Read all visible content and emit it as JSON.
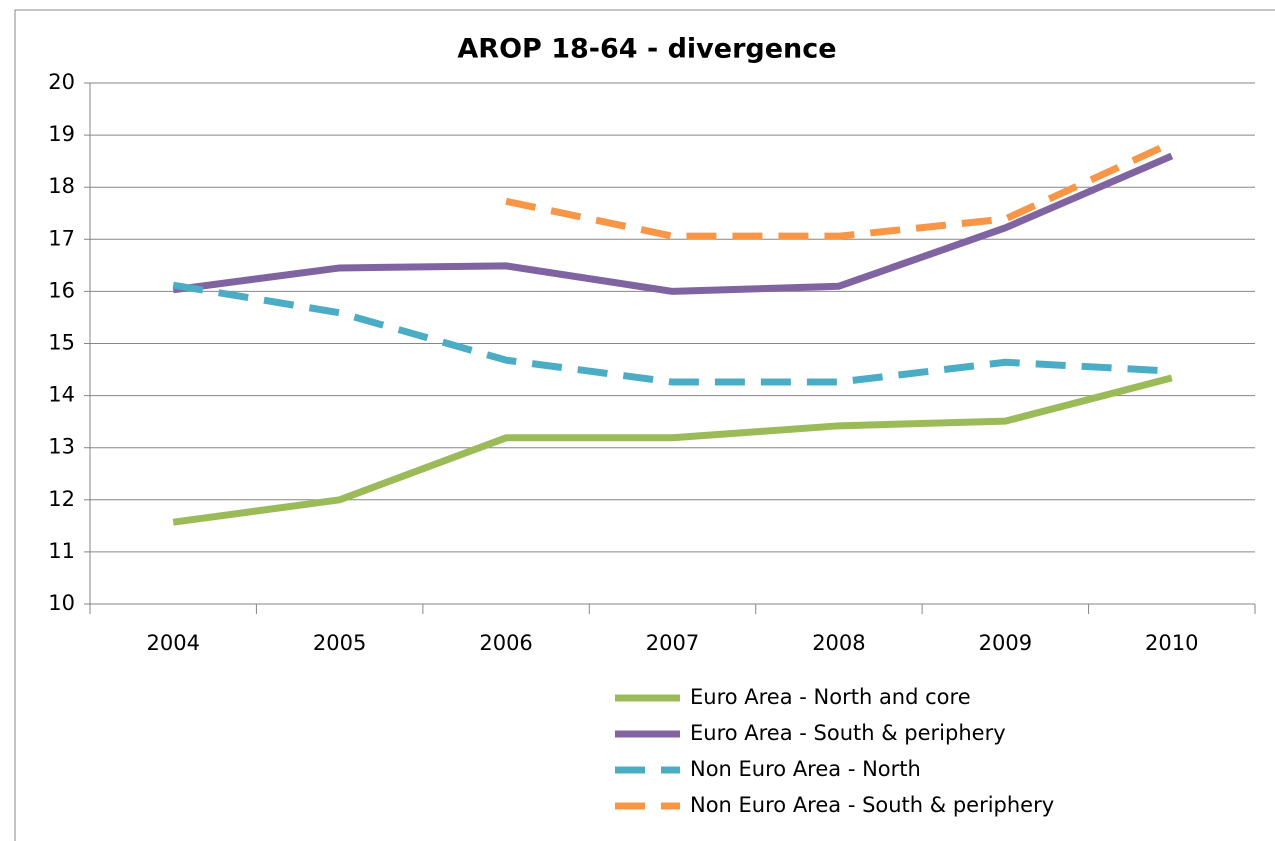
{
  "chart_data": {
    "type": "line",
    "title": "AROP 18-64 - divergence",
    "categories": [
      "2004",
      "2005",
      "2006",
      "2007",
      "2008",
      "2009",
      "2010"
    ],
    "series": [
      {
        "name": "Euro Area - North and core",
        "color": "#9bbb59",
        "dashed": false,
        "values": [
          11.57,
          12.0,
          13.19,
          13.19,
          13.42,
          13.51,
          14.34
        ]
      },
      {
        "name": "Euro Area - South & periphery",
        "color": "#8064a2",
        "dashed": false,
        "values": [
          16.03,
          16.45,
          16.49,
          16.0,
          16.1,
          17.22,
          18.6
        ]
      },
      {
        "name": "Non Euro Area - North",
        "color": "#4bacc6",
        "dashed": true,
        "values": [
          16.12,
          15.59,
          14.68,
          14.26,
          14.26,
          14.64,
          14.47
        ]
      },
      {
        "name": "Non Euro Area - South & periphery",
        "color": "#f79646",
        "dashed": true,
        "values": [
          null,
          null,
          17.73,
          17.06,
          17.06,
          17.39,
          18.85
        ]
      }
    ],
    "ylim": [
      10,
      20
    ],
    "yticks": [
      10,
      11,
      12,
      13,
      14,
      15,
      16,
      17,
      18,
      19,
      20
    ],
    "grid": true,
    "legend": "bottom"
  }
}
